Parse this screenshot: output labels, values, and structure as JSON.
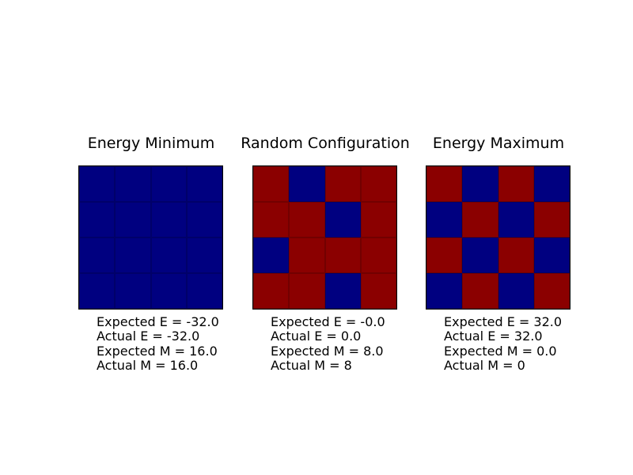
{
  "figure": {
    "background": "#ffffff",
    "text_color": "#000000",
    "border_color": "#000000"
  },
  "colormap": {
    "0": "#000080",
    "1": "#8b0000"
  },
  "chart_data": [
    {
      "type": "heatmap",
      "title": "Energy Minimum",
      "rows": 4,
      "cols": 4,
      "grid": [
        [
          0,
          0,
          0,
          0
        ],
        [
          0,
          0,
          0,
          0
        ],
        [
          0,
          0,
          0,
          0
        ],
        [
          0,
          0,
          0,
          0
        ]
      ],
      "legend": {
        "0": "spin shown navy #000080",
        "1": "spin shown dark red #8b0000"
      },
      "annotations": [
        "Expected E = -32.0",
        "Actual E = -32.0",
        "Expected M = 16.0",
        "Actual M = 16.0"
      ]
    },
    {
      "type": "heatmap",
      "title": "Random Configuration",
      "rows": 4,
      "cols": 4,
      "grid": [
        [
          1,
          0,
          1,
          1
        ],
        [
          1,
          1,
          0,
          1
        ],
        [
          0,
          1,
          1,
          1
        ],
        [
          1,
          1,
          0,
          1
        ]
      ],
      "legend": {
        "0": "spin shown navy #000080",
        "1": "spin shown dark red #8b0000"
      },
      "annotations": [
        "Expected E = -0.0",
        "Actual E = 0.0",
        "Expected M = 8.0",
        "Actual M = 8"
      ]
    },
    {
      "type": "heatmap",
      "title": "Energy Maximum",
      "rows": 4,
      "cols": 4,
      "grid": [
        [
          1,
          0,
          1,
          0
        ],
        [
          0,
          1,
          0,
          1
        ],
        [
          1,
          0,
          1,
          0
        ],
        [
          0,
          1,
          0,
          1
        ]
      ],
      "legend": {
        "0": "spin shown navy #000080",
        "1": "spin shown dark red #8b0000"
      },
      "annotations": [
        "Expected E = 32.0",
        "Actual E = 32.0",
        "Expected M = 0.0",
        "Actual M = 0"
      ]
    }
  ]
}
